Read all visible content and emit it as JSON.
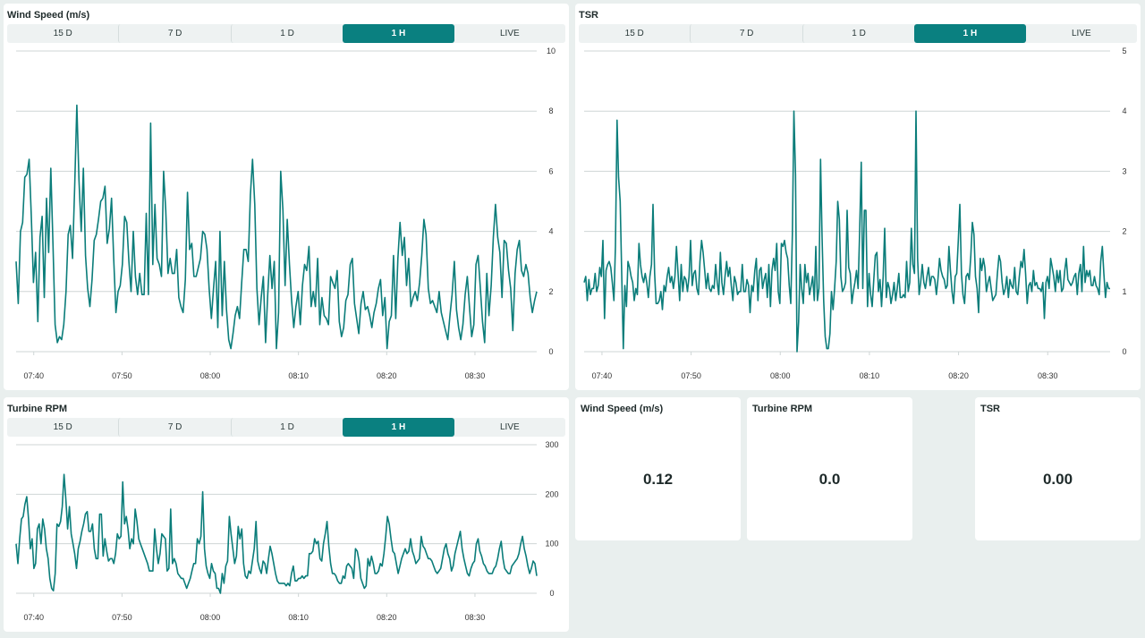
{
  "colors": {
    "line": "#0b7d7a",
    "accent": "#0a8080",
    "grid": "#cfd6d6",
    "background": "#e9efee"
  },
  "tabs": [
    "15 D",
    "7 D",
    "1 D",
    "1 H",
    "LIVE"
  ],
  "active_tab": "1 H",
  "x_ticks": [
    "07:40",
    "07:50",
    "08:00",
    "08:10",
    "08:20",
    "08:30"
  ],
  "panels": {
    "wind": {
      "title": "Wind Speed (m/s)"
    },
    "tsr": {
      "title": "TSR"
    },
    "rpm": {
      "title": "Turbine RPM"
    }
  },
  "values": [
    {
      "label": "Wind Speed (m/s)",
      "value": "0.12"
    },
    {
      "label": "Turbine RPM",
      "value": "0.0"
    },
    {
      "label": "TSR",
      "value": "0.00"
    }
  ],
  "chart_data": [
    {
      "type": "line",
      "title": "Wind Speed (m/s)",
      "x_range": [
        "07:38",
        "08:37"
      ],
      "ylim": [
        0,
        10
      ],
      "y_ticks": [
        0,
        2,
        4,
        6,
        8,
        10
      ],
      "x_ticks": [
        "07:40",
        "07:50",
        "08:00",
        "08:10",
        "08:20",
        "08:30"
      ],
      "grid": true,
      "y_axis_position": "right",
      "series": [
        {
          "values": [
            3.0,
            1.6,
            4.0,
            4.3,
            5.8,
            5.9,
            6.4,
            4.5,
            2.3,
            3.3,
            1.0,
            3.8,
            4.5,
            1.8,
            5.1,
            3.3,
            6.1,
            3.6,
            0.9,
            0.3,
            0.5,
            0.4,
            0.9,
            2.0,
            3.9,
            4.2,
            3.1,
            5.5,
            8.2,
            5.7,
            4.0,
            6.1,
            3.2,
            2.1,
            1.5,
            2.4,
            3.7,
            3.9,
            4.4,
            5.0,
            5.1,
            5.5,
            3.6,
            4.1,
            5.1,
            3.1,
            1.3,
            2.0,
            2.2,
            2.9,
            4.5,
            4.3,
            3.0,
            2.0,
            4.0,
            2.5,
            1.9,
            2.6,
            1.9,
            1.9,
            4.6,
            1.9,
            7.6,
            2.9,
            4.9,
            3.1,
            2.9,
            2.5,
            6.0,
            4.7,
            2.6,
            3.1,
            2.6,
            2.6,
            3.4,
            1.8,
            1.5,
            1.3,
            2.4,
            5.3,
            3.4,
            3.6,
            2.5,
            2.5,
            2.8,
            3.1,
            4.0,
            3.9,
            3.4,
            2.1,
            1.1,
            2.1,
            3.0,
            0.8,
            4.0,
            1.2,
            3.0,
            1.4,
            0.4,
            0.1,
            0.6,
            1.2,
            1.5,
            1.1,
            2.3,
            3.4,
            3.4,
            3.0,
            5.2,
            6.4,
            4.9,
            2.1,
            0.9,
            1.8,
            2.5,
            0.3,
            1.9,
            3.2,
            2.1,
            3.0,
            0.1,
            1.3,
            6.0,
            4.7,
            2.2,
            4.4,
            2.9,
            1.7,
            0.8,
            1.5,
            2.0,
            0.9,
            2.2,
            2.9,
            2.7,
            3.5,
            1.5,
            2.0,
            1.5,
            3.1,
            0.9,
            1.8,
            1.2,
            1.1,
            0.9,
            2.5,
            2.3,
            2.1,
            2.7,
            1.0,
            0.5,
            0.8,
            1.7,
            1.9,
            2.9,
            3.1,
            1.6,
            1.1,
            0.6,
            1.6,
            2.0,
            1.4,
            1.5,
            1.2,
            0.8,
            1.3,
            1.6,
            2.1,
            2.4,
            1.2,
            1.8,
            0.1,
            1.0,
            1.2,
            3.2,
            1.1,
            3.1,
            4.3,
            3.2,
            3.8,
            2.2,
            3.1,
            1.5,
            1.8,
            2.0,
            1.7,
            2.3,
            3.2,
            4.4,
            3.9,
            2.1,
            1.6,
            1.7,
            1.5,
            1.3,
            2.0,
            1.3,
            1.0,
            0.7,
            0.4,
            1.2,
            1.9,
            3.0,
            1.4,
            0.8,
            0.4,
            0.9,
            1.9,
            2.5,
            1.5,
            0.5,
            0.9,
            2.9,
            3.2,
            2.1,
            1.0,
            0.3,
            2.6,
            1.2,
            2.2,
            3.8,
            4.9,
            3.8,
            3.3,
            1.8,
            3.7,
            3.6,
            2.7,
            2.1,
            0.7,
            2.6,
            3.4,
            3.7,
            2.7,
            2.5,
            2.9,
            2.6,
            1.8,
            1.3,
            1.7,
            2.0
          ]
        }
      ]
    },
    {
      "type": "line",
      "title": "TSR",
      "x_range": [
        "07:38",
        "08:37"
      ],
      "ylim": [
        0,
        5
      ],
      "y_ticks": [
        0,
        1,
        2,
        3,
        4,
        5
      ],
      "x_ticks": [
        "07:40",
        "07:50",
        "08:00",
        "08:10",
        "08:20",
        "08:30"
      ],
      "grid": true,
      "y_axis_position": "right",
      "series": [
        {
          "values": [
            1.15,
            1.25,
            0.85,
            1.2,
            0.95,
            1.05,
            1.05,
            1.3,
            1.0,
            1.1,
            1.4,
            1.25,
            1.85,
            0.55,
            1.35,
            1.45,
            1.5,
            1.4,
            1.15,
            0.85,
            1.75,
            3.85,
            2.9,
            2.5,
            1.3,
            0.05,
            1.1,
            0.75,
            1.5,
            1.4,
            1.25,
            1.15,
            0.85,
            1.05,
            0.95,
            1.8,
            1.45,
            1.25,
            1.15,
            1.3,
            1.15,
            0.9,
            1.25,
            1.45,
            2.45,
            1.3,
            0.8,
            0.8,
            0.85,
            1.0,
            0.7,
            1.1,
            1.0,
            1.25,
            1.4,
            1.15,
            1.25,
            1.05,
            1.25,
            1.75,
            1.3,
            0.85,
            1.45,
            1.0,
            1.25,
            1.2,
            1.0,
            1.25,
            1.85,
            1.1,
            1.3,
            1.35,
            1.05,
            0.95,
            1.5,
            1.85,
            1.65,
            1.35,
            1.05,
            1.3,
            1.05,
            1.0,
            1.1,
            1.05,
            1.45,
            1.15,
            0.95,
            1.65,
            1.15,
            0.95,
            1.25,
            1.5,
            1.25,
            1.4,
            1.1,
            0.85,
            1.25,
            1.15,
            0.95,
            1.0,
            1.0,
            1.45,
            1.0,
            1.0,
            1.2,
            1.1,
            0.65,
            1.1,
            1.0,
            1.35,
            1.55,
            0.85,
            1.35,
            1.4,
            1.05,
            1.2,
            1.3,
            0.9,
            1.45,
            0.75,
            1.35,
            1.55,
            1.35,
            1.8,
            1.0,
            0.8,
            1.8,
            1.75,
            1.85,
            1.65,
            1.55,
            1.1,
            0.8,
            1.95,
            4.0,
            2.95,
            0.0,
            0.5,
            1.45,
            1.05,
            0.8,
            1.45,
            1.15,
            1.3,
            0.95,
            1.1,
            1.25,
            0.85,
            1.75,
            0.85,
            1.05,
            3.2,
            1.9,
            0.85,
            0.25,
            0.05,
            0.05,
            0.3,
            1.0,
            0.7,
            1.05,
            1.5,
            2.5,
            2.2,
            1.25,
            1.0,
            1.05,
            1.15,
            2.35,
            1.4,
            1.3,
            0.8,
            1.0,
            1.15,
            1.35,
            1.05,
            2.0,
            3.15,
            1.05,
            2.35,
            2.35,
            0.75,
            1.3,
            0.95,
            0.75,
            1.2,
            1.6,
            1.65,
            1.0,
            1.2,
            0.75,
            1.25,
            2.05,
            0.9,
            1.15,
            1.05,
            0.8,
            0.95,
            1.15,
            0.85,
            1.05,
            1.3,
            0.9,
            0.9,
            0.95,
            0.9,
            1.5,
            1.0,
            1.15,
            2.05,
            1.45,
            1.3,
            4.0,
            1.55,
            0.95,
            1.15,
            1.45,
            1.15,
            1.05,
            1.25,
            1.4,
            1.1,
            1.25,
            1.25,
            1.2,
            0.95,
            1.2,
            1.55,
            1.35,
            1.25,
            1.2,
            1.05,
            1.1,
            1.75,
            1.35,
            1.0,
            0.8,
            1.25,
            1.3,
            1.85,
            2.45,
            1.3,
            0.95,
            0.8,
            1.25,
            1.3,
            1.2,
            1.6,
            2.15,
            1.95,
            1.25,
            1.05,
            0.65,
            1.55,
            1.35,
            1.55,
            1.4,
            1.0,
            1.15,
            1.25,
            1.05,
            0.85,
            0.9,
            0.95,
            1.3,
            1.6,
            1.5,
            1.15,
            0.95,
            1.05,
            1.25,
            0.9,
            1.2,
            1.1,
            1.05,
            1.4,
            1.0,
            0.95,
            1.25,
            1.5,
            1.4,
            1.7,
            1.3,
            0.8,
            1.1,
            1.15,
            1.0,
            1.35,
            1.1,
            1.15,
            1.05,
            1.05,
            1.0,
            1.15,
            0.55,
            1.15,
            1.25,
            1.05,
            1.55,
            1.4,
            1.25,
            1.0,
            1.35,
            1.15,
            1.35,
            1.0,
            1.05,
            1.35,
            1.55,
            1.2,
            1.15,
            1.1,
            1.15,
            1.25,
            1.3,
            0.95,
            1.3,
            1.45,
            1.0,
            1.75,
            1.15,
            1.35,
            1.25,
            1.35,
            1.1,
            1.1,
            1.25,
            1.1,
            1.05,
            0.95,
            1.5,
            1.75,
            1.3,
            0.9,
            1.15,
            1.05,
            1.05
          ]
        }
      ]
    },
    {
      "type": "line",
      "title": "Turbine RPM",
      "x_range": [
        "07:38",
        "08:37"
      ],
      "ylim": [
        0,
        300
      ],
      "y_ticks": [
        0,
        100,
        200,
        300
      ],
      "x_ticks": [
        "07:40",
        "07:50",
        "08:00",
        "08:10",
        "08:20",
        "08:30"
      ],
      "grid": true,
      "y_axis_position": "right",
      "series": [
        {
          "values": [
            100,
            60,
            110,
            150,
            155,
            180,
            195,
            150,
            90,
            110,
            50,
            60,
            130,
            140,
            100,
            150,
            130,
            90,
            70,
            30,
            10,
            5,
            40,
            140,
            135,
            145,
            175,
            240,
            190,
            130,
            175,
            120,
            100,
            80,
            50,
            90,
            105,
            125,
            140,
            160,
            165,
            125,
            125,
            140,
            90,
            70,
            70,
            160,
            160,
            75,
            110,
            85,
            65,
            70,
            70,
            60,
            80,
            120,
            110,
            115,
            225,
            140,
            155,
            130,
            90,
            110,
            100,
            170,
            145,
            110,
            100,
            90,
            80,
            70,
            60,
            45,
            45,
            45,
            130,
            90,
            60,
            80,
            120,
            115,
            110,
            45,
            50,
            170,
            60,
            70,
            60,
            40,
            35,
            30,
            30,
            20,
            10,
            20,
            30,
            45,
            60,
            60,
            110,
            100,
            115,
            205,
            90,
            55,
            40,
            30,
            60,
            45,
            40,
            10,
            10,
            0,
            40,
            20,
            55,
            65,
            155,
            120,
            90,
            60,
            75,
            135,
            110,
            130,
            60,
            35,
            30,
            45,
            40,
            65,
            90,
            145,
            65,
            50,
            40,
            65,
            60,
            40,
            70,
            95,
            80,
            60,
            40,
            25,
            20,
            20,
            20,
            20,
            15,
            20,
            15,
            40,
            55,
            25,
            25,
            30,
            30,
            35,
            30,
            35,
            35,
            80,
            80,
            85,
            110,
            100,
            105,
            70,
            65,
            100,
            120,
            145,
            95,
            60,
            40,
            40,
            35,
            25,
            20,
            20,
            35,
            30,
            55,
            60,
            55,
            50,
            30,
            90,
            85,
            65,
            30,
            20,
            10,
            15,
            70,
            55,
            75,
            60,
            40,
            40,
            45,
            60,
            55,
            80,
            115,
            155,
            140,
            110,
            85,
            80,
            60,
            40,
            55,
            70,
            80,
            90,
            80,
            85,
            110,
            85,
            75,
            60,
            65,
            70,
            115,
            95,
            90,
            80,
            70,
            70,
            65,
            55,
            45,
            40,
            45,
            50,
            70,
            90,
            100,
            80,
            70,
            45,
            55,
            80,
            95,
            110,
            125,
            90,
            70,
            55,
            40,
            35,
            50,
            60,
            65,
            100,
            110,
            85,
            75,
            60,
            55,
            45,
            40,
            40,
            40,
            50,
            55,
            70,
            90,
            105,
            70,
            50,
            45,
            40,
            40,
            55,
            60,
            65,
            70,
            80,
            100,
            115,
            90,
            75,
            55,
            40,
            50,
            65,
            60,
            35
          ]
        }
      ]
    }
  ]
}
